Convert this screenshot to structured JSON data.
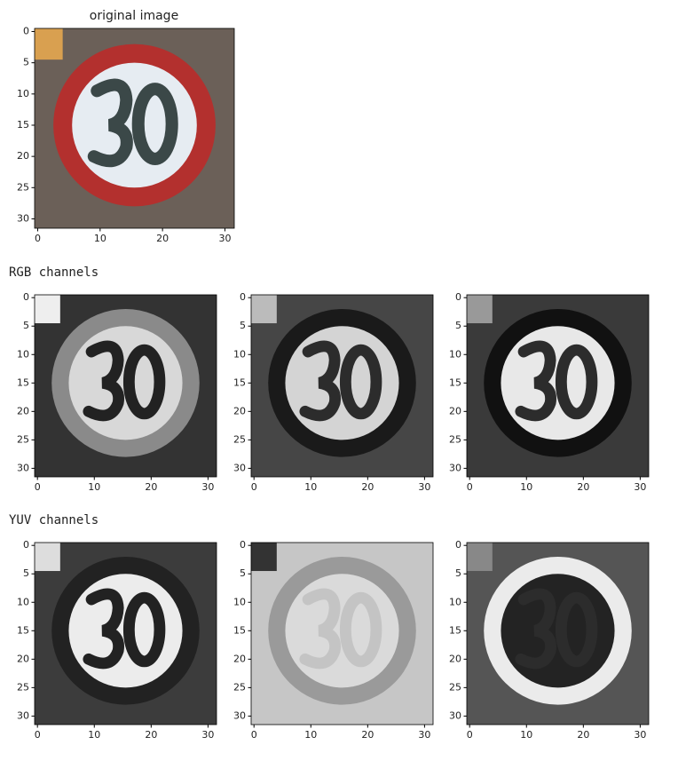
{
  "title": "original image",
  "sections": [
    "RGB channels",
    "YUV channels"
  ],
  "plots": [
    {
      "xlim": [
        -0.5,
        31.5
      ],
      "ylim": [
        31.5,
        -0.5
      ],
      "xticks": [
        0,
        10,
        20,
        30
      ],
      "yticks": [
        0,
        5,
        10,
        15,
        20,
        25,
        30
      ]
    },
    {
      "xlim": [
        -0.5,
        31.5
      ],
      "ylim": [
        31.5,
        -0.5
      ],
      "xticks": [
        0,
        10,
        20,
        30
      ],
      "yticks": [
        0,
        5,
        10,
        15,
        20,
        25,
        30
      ]
    },
    {
      "xlim": [
        -0.5,
        31.5
      ],
      "ylim": [
        31.5,
        -0.5
      ],
      "xticks": [
        0,
        10,
        20,
        30
      ],
      "yticks": [
        0,
        5,
        10,
        15,
        20,
        25,
        30
      ]
    },
    {
      "xlim": [
        -0.5,
        31.5
      ],
      "ylim": [
        31.5,
        -0.5
      ],
      "xticks": [
        0,
        10,
        20,
        30
      ],
      "yticks": [
        0,
        5,
        10,
        15,
        20,
        25,
        30
      ]
    },
    {
      "xlim": [
        -0.5,
        31.5
      ],
      "ylim": [
        31.5,
        -0.5
      ],
      "xticks": [
        0,
        10,
        20,
        30
      ],
      "yticks": [
        0,
        5,
        10,
        15,
        20,
        25,
        30
      ]
    },
    {
      "xlim": [
        -0.5,
        31.5
      ],
      "ylim": [
        31.5,
        -0.5
      ],
      "xticks": [
        0,
        10,
        20,
        30
      ],
      "yticks": [
        0,
        5,
        10,
        15,
        20,
        25,
        30
      ]
    },
    {
      "xlim": [
        -0.5,
        31.5
      ],
      "ylim": [
        31.5,
        -0.5
      ],
      "xticks": [
        0,
        10,
        20,
        30
      ],
      "yticks": [
        0,
        5,
        10,
        15,
        20,
        25,
        30
      ]
    }
  ]
}
